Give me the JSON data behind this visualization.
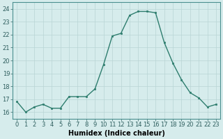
{
  "x": [
    0,
    1,
    2,
    3,
    4,
    5,
    6,
    7,
    8,
    9,
    10,
    11,
    12,
    13,
    14,
    15,
    16,
    17,
    18,
    19,
    20,
    21,
    22,
    23
  ],
  "y": [
    16.8,
    16.0,
    16.4,
    16.6,
    16.3,
    16.3,
    17.2,
    17.2,
    17.2,
    17.8,
    19.7,
    21.9,
    22.1,
    23.5,
    23.8,
    23.8,
    23.7,
    21.4,
    19.8,
    18.5,
    17.5,
    17.1,
    16.4,
    16.6
  ],
  "line_color": "#2e7d6e",
  "marker": "s",
  "markersize": 2.0,
  "linewidth": 1.0,
  "xlabel": "Humidex (Indice chaleur)",
  "xlabel_fontsize": 7,
  "ylabel": "",
  "title": "",
  "ylim": [
    15.5,
    24.5
  ],
  "xlim": [
    -0.5,
    23.5
  ],
  "yticks": [
    16,
    17,
    18,
    19,
    20,
    21,
    22,
    23,
    24
  ],
  "xticks": [
    0,
    1,
    2,
    3,
    4,
    5,
    6,
    7,
    8,
    9,
    10,
    11,
    12,
    13,
    14,
    15,
    16,
    17,
    18,
    19,
    20,
    21,
    22,
    23
  ],
  "background_color": "#d6ecec",
  "grid_color": "#b8d4d4",
  "tick_fontsize": 6.0
}
